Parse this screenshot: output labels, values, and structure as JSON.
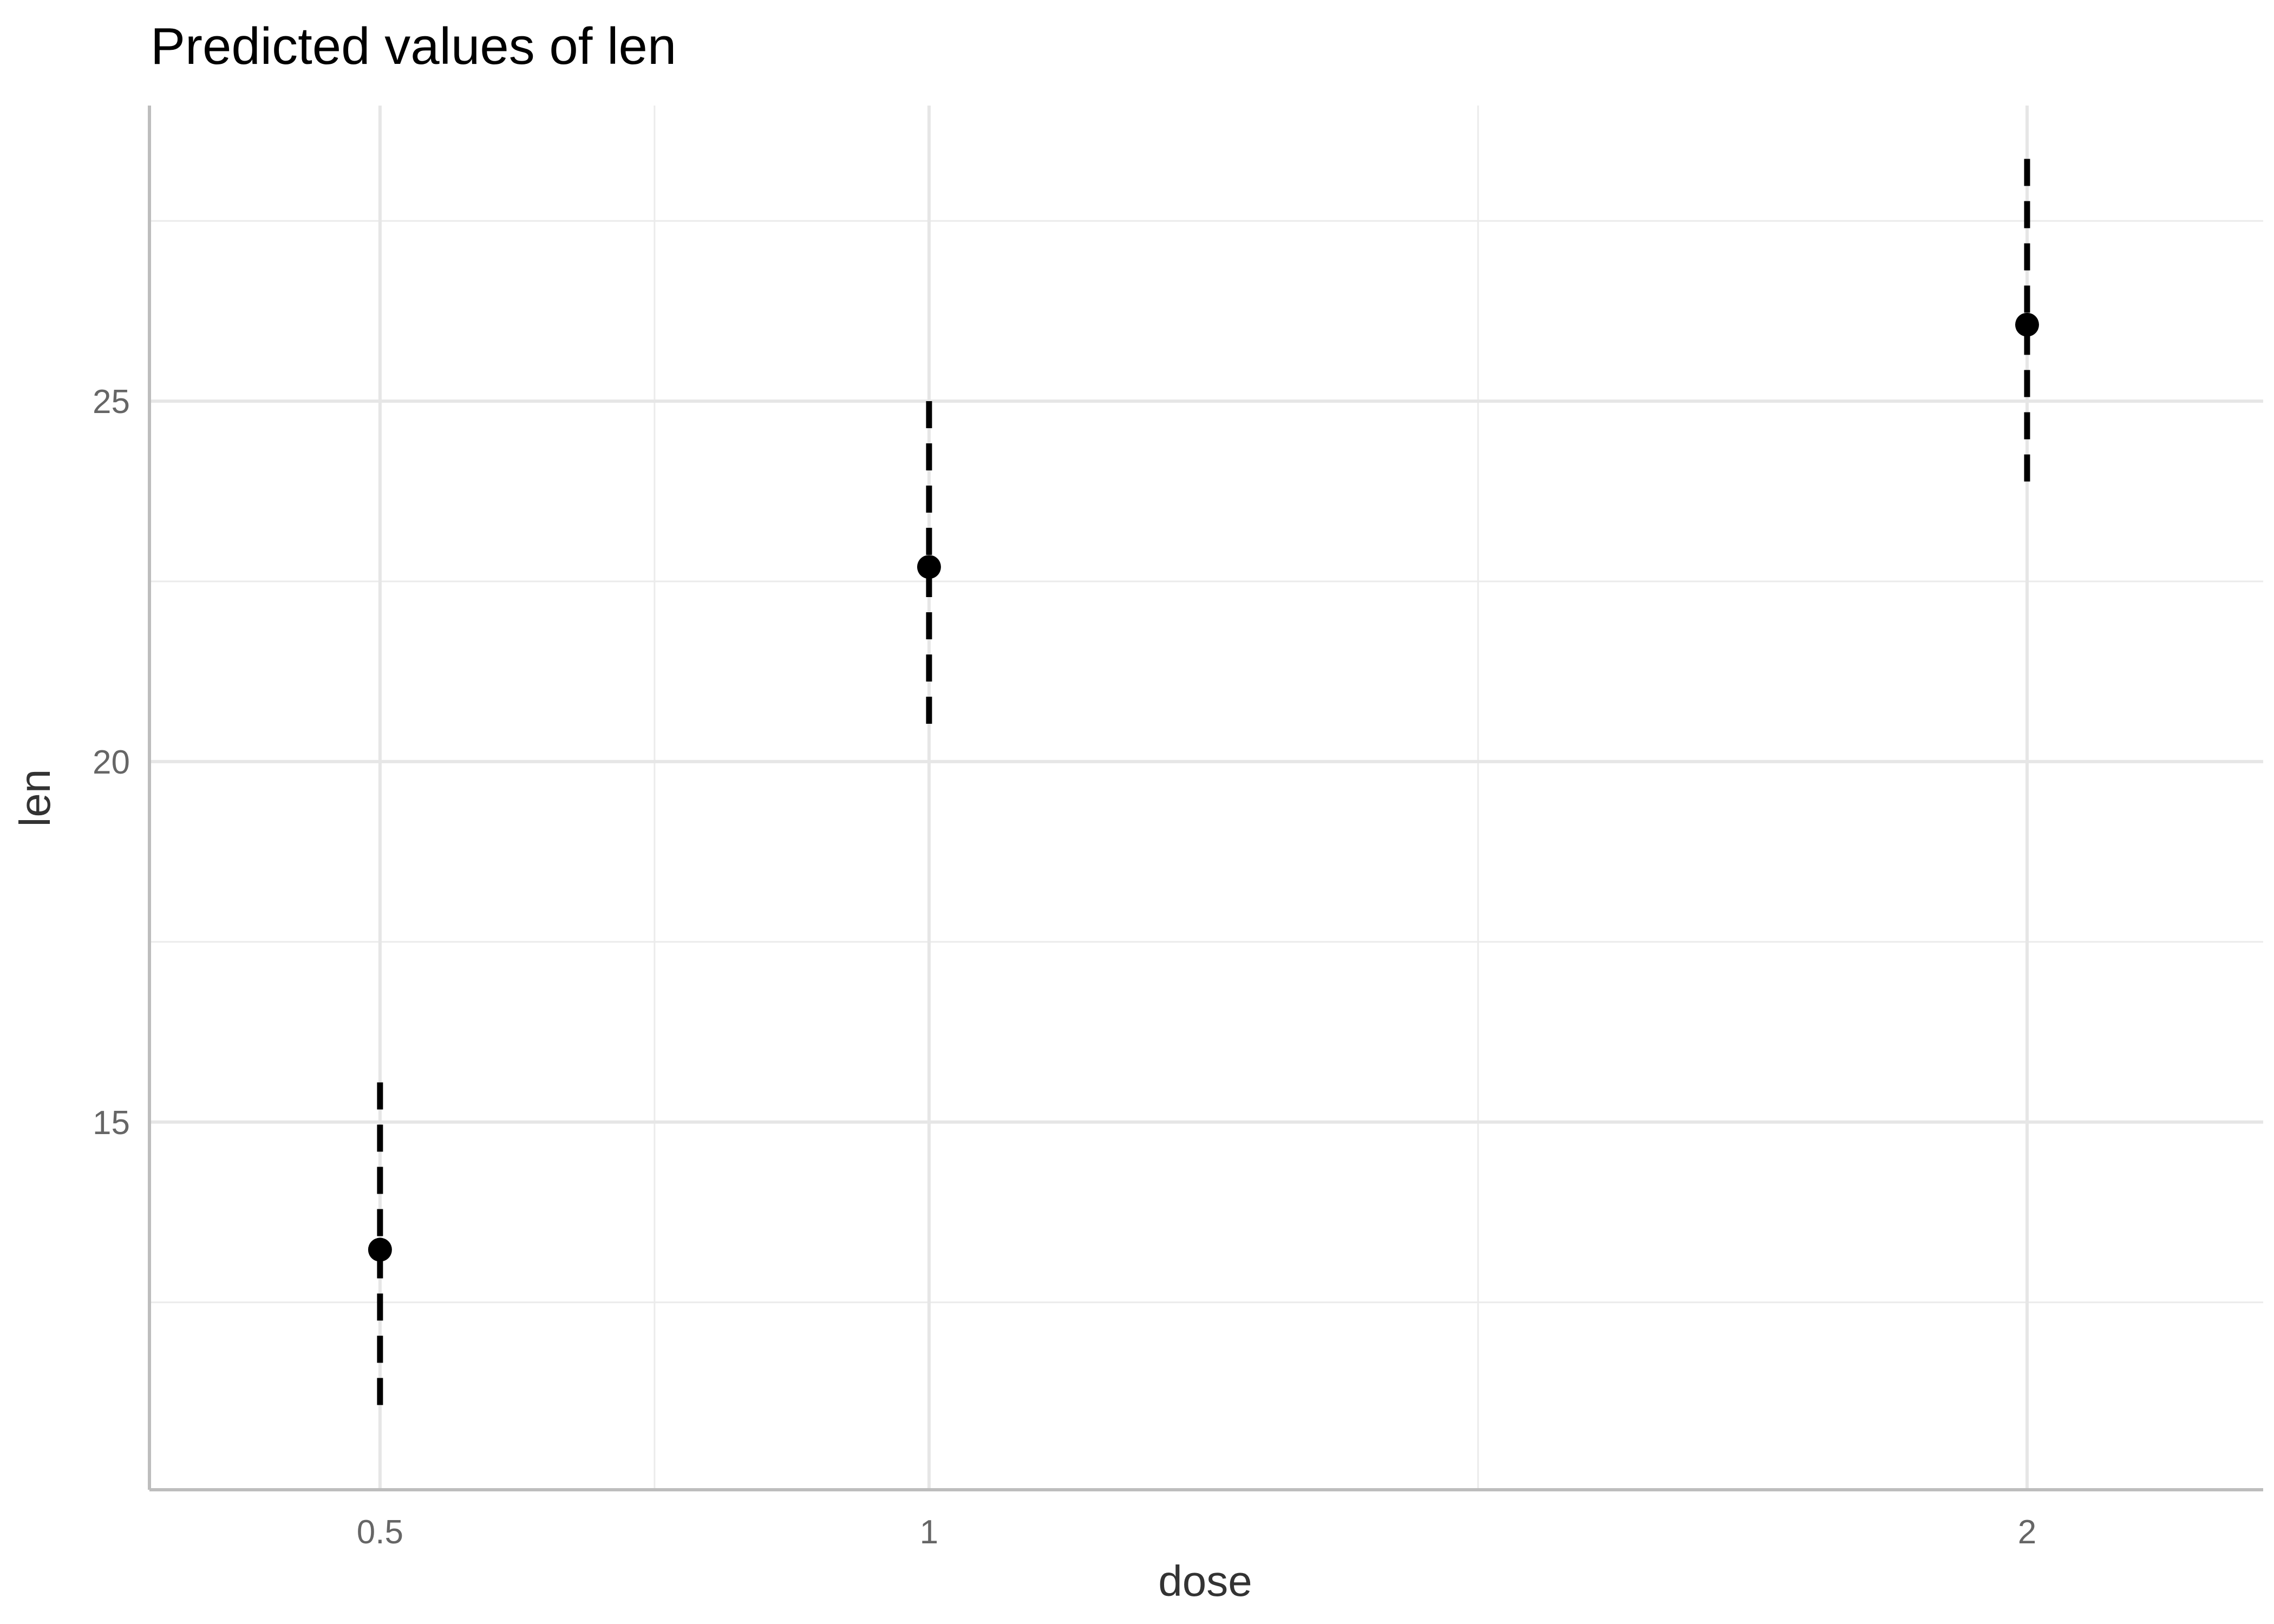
{
  "chart_data": {
    "type": "scatter",
    "title": "Predicted values of len",
    "xlabel": "dose",
    "ylabel": "len",
    "x_tick_labels": [
      "0.5",
      "1",
      "2"
    ],
    "x_ticks": [
      0.5,
      1,
      2
    ],
    "x_minor_ticks": [
      0.75,
      1.5
    ],
    "xlim": [
      0.29,
      2.215
    ],
    "y_tick_labels": [
      "15",
      "20",
      "25"
    ],
    "y_ticks": [
      15,
      20,
      25
    ],
    "y_minor_ticks": [
      12.5,
      17.5,
      22.5,
      27.5
    ],
    "ylim": [
      9.9,
      29.1
    ],
    "grid": true,
    "series": [
      {
        "name": "predicted",
        "color": "#000000",
        "points": [
          {
            "x": 0.5,
            "y": 13.23,
            "ci_low": 10.95,
            "ci_high": 15.55
          },
          {
            "x": 1,
            "y": 22.7,
            "ci_low": 20.4,
            "ci_high": 25.0
          },
          {
            "x": 2,
            "y": 26.06,
            "ci_low": 23.76,
            "ci_high": 28.36
          }
        ]
      }
    ]
  }
}
